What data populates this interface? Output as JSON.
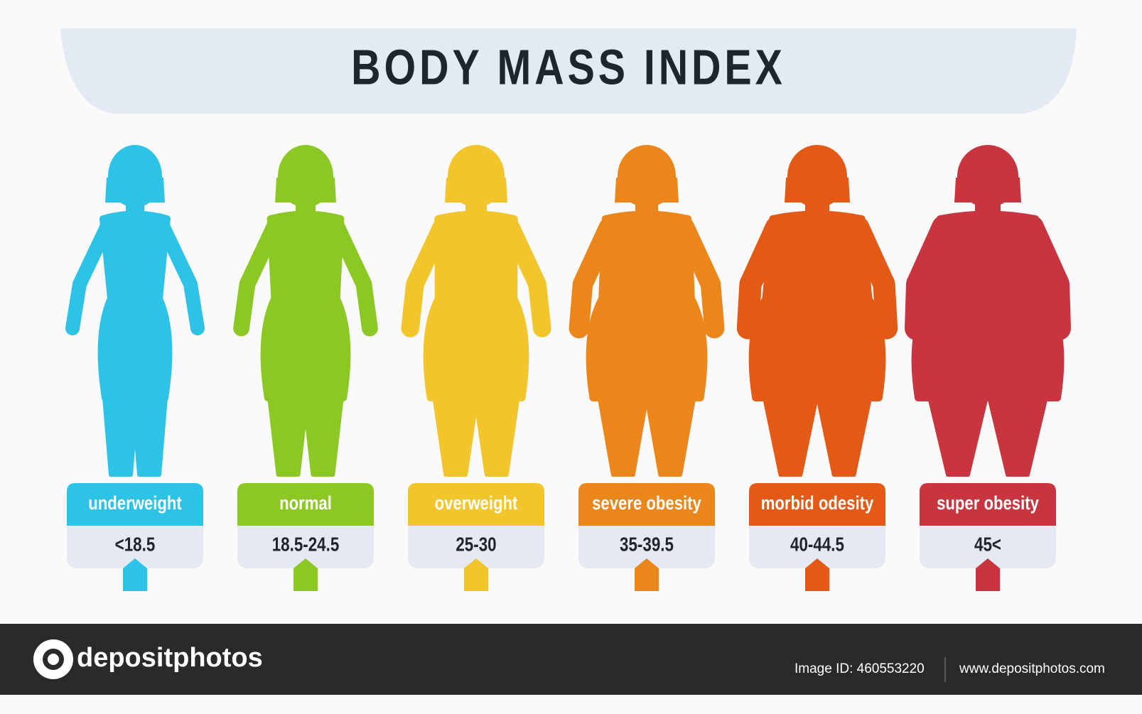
{
  "header": {
    "title": "BODY MASS INDEX"
  },
  "categories": [
    {
      "label": "underweight",
      "range": "<18.5",
      "color": "#2cc3e7"
    },
    {
      "label": "normal",
      "range": "18.5-24.5",
      "color": "#8cc823"
    },
    {
      "label": "overweight",
      "range": "25-30",
      "color": "#f3c52c"
    },
    {
      "label": "severe obesity",
      "range": "35-39.5",
      "color": "#ea861a"
    },
    {
      "label": "morbid odesity",
      "range": "40-44.5",
      "color": "#e35a17"
    },
    {
      "label": "super obesity",
      "range": "45<",
      "color": "#c9353f"
    }
  ],
  "footer": {
    "brand": "depositphotos",
    "image_id": "Image ID: 460553220",
    "url": "www.depositphotos.com"
  }
}
